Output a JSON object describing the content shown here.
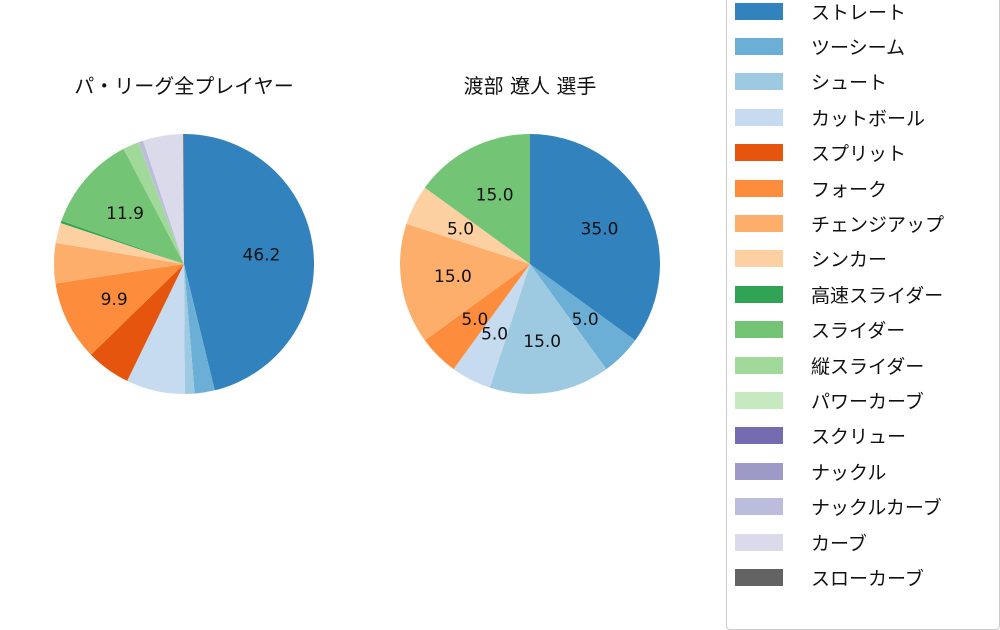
{
  "legend": {
    "items": [
      {
        "label": "ストレート",
        "color": "#3182bd"
      },
      {
        "label": "ツーシーム",
        "color": "#6baed6"
      },
      {
        "label": "シュート",
        "color": "#9ecae1"
      },
      {
        "label": "カットボール",
        "color": "#c6dbef"
      },
      {
        "label": "スプリット",
        "color": "#e6550d"
      },
      {
        "label": "フォーク",
        "color": "#fd8d3c"
      },
      {
        "label": "チェンジアップ",
        "color": "#fdae6b"
      },
      {
        "label": "シンカー",
        "color": "#fdd0a2"
      },
      {
        "label": "高速スライダー",
        "color": "#31a354"
      },
      {
        "label": "スライダー",
        "color": "#74c476"
      },
      {
        "label": "縦スライダー",
        "color": "#a1d99b"
      },
      {
        "label": "パワーカーブ",
        "color": "#c7e9c0"
      },
      {
        "label": "スクリュー",
        "color": "#756bb1"
      },
      {
        "label": "ナックル",
        "color": "#9e9ac8"
      },
      {
        "label": "ナックルカーブ",
        "color": "#bcbddc"
      },
      {
        "label": "カーブ",
        "color": "#dadaeb"
      },
      {
        "label": "スローカーブ",
        "color": "#636363"
      }
    ]
  },
  "chart_data": [
    {
      "type": "pie",
      "title": "パ・リーグ全プレイヤー",
      "categories": [
        "ストレート",
        "ツーシーム",
        "シュート",
        "カットボール",
        "スプリット",
        "フォーク",
        "チェンジアップ",
        "シンカー",
        "高速スライダー",
        "スライダー",
        "縦スライダー",
        "パワーカーブ",
        "スクリュー",
        "ナックル",
        "ナックルカーブ",
        "カーブ",
        "スローカーブ"
      ],
      "values": [
        46.2,
        2.5,
        1.2,
        7.3,
        5.5,
        9.9,
        5.0,
        2.5,
        0.3,
        11.9,
        2.0,
        0.0,
        0.0,
        0.0,
        0.6,
        5.0,
        0.1
      ],
      "labels_shown": [
        "46.2",
        "9.9",
        "11.9"
      ],
      "start_angle": 90,
      "direction": "clockwise"
    },
    {
      "type": "pie",
      "title": "渡部 遼人  選手",
      "categories": [
        "ストレート",
        "ツーシーム",
        "シュート",
        "カットボール",
        "スプリット",
        "フォーク",
        "チェンジアップ",
        "シンカー",
        "高速スライダー",
        "スライダー",
        "縦スライダー",
        "パワーカーブ",
        "スクリュー",
        "ナックル",
        "ナックルカーブ",
        "カーブ",
        "スローカーブ"
      ],
      "values": [
        35.0,
        5.0,
        15.0,
        5.0,
        0.0,
        5.0,
        15.0,
        5.0,
        0.0,
        15.0,
        0.0,
        0.0,
        0.0,
        0.0,
        0.0,
        0.0,
        0.0
      ],
      "labels_shown": [
        "35.0",
        "5.0",
        "15.0",
        "5.0",
        "5.0",
        "15.0",
        "5.0",
        "15.0"
      ],
      "start_angle": 90,
      "direction": "clockwise"
    }
  ]
}
